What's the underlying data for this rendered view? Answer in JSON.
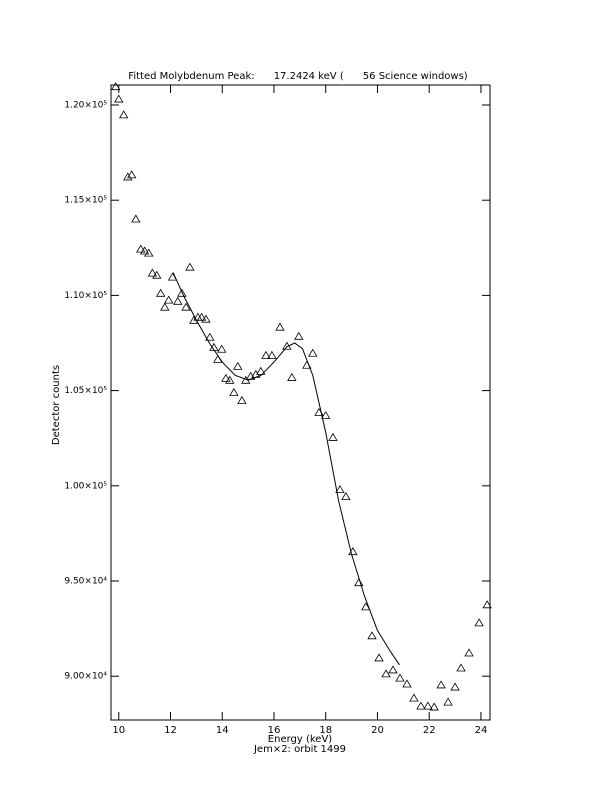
{
  "chart_data": {
    "type": "scatter",
    "title": "Fitted Molybdenum Peak:      17.2424 keV (      56 Science windows)",
    "x_label": "Energy (keV)",
    "subtitle": "Jem×2: orbit 1499",
    "y_label": "Detector counts",
    "color": "#000000",
    "marker": "triangle",
    "xlim": [
      9.7,
      24.35
    ],
    "ylim": [
      87700,
      121050
    ],
    "xticks": [
      10,
      12,
      14,
      16,
      18,
      20,
      22,
      24
    ],
    "yticks": [
      {
        "value": 90000,
        "label": "9.00×10⁴"
      },
      {
        "value": 95000,
        "label": "9.50×10⁴"
      },
      {
        "value": 100000,
        "label": "1.00×10⁵"
      },
      {
        "value": 105000,
        "label": "1.05×10⁵"
      },
      {
        "value": 110000,
        "label": "1.10×10⁵"
      },
      {
        "value": 115000,
        "label": "1.15×10⁵"
      },
      {
        "value": 120000,
        "label": "1.20×10⁵"
      }
    ],
    "x": [
      9.88,
      10.0,
      10.19,
      10.35,
      10.5,
      10.66,
      10.85,
      11.0,
      11.16,
      11.3,
      11.47,
      11.62,
      11.78,
      11.93,
      12.08,
      12.28,
      12.44,
      12.6,
      12.75,
      12.9,
      13.06,
      13.2,
      13.37,
      13.52,
      13.68,
      13.83,
      13.98,
      14.14,
      14.29,
      14.45,
      14.6,
      14.76,
      14.91,
      15.1,
      15.3,
      15.49,
      15.69,
      15.92,
      16.23,
      16.5,
      16.69,
      16.96,
      17.27,
      17.5,
      17.74,
      18.0,
      18.28,
      18.55,
      18.78,
      19.05,
      19.28,
      19.55,
      19.79,
      20.06,
      20.33,
      20.6,
      20.87,
      21.14,
      21.41,
      21.68,
      21.95,
      22.19,
      22.46,
      22.73,
      23.0,
      23.23,
      23.54,
      23.93,
      24.24
    ],
    "values": [
      120950,
      120300,
      119470,
      116210,
      116320,
      114000,
      112420,
      112320,
      112210,
      111160,
      111050,
      110100,
      109370,
      109740,
      110950,
      109680,
      110100,
      109370,
      111470,
      108680,
      108840,
      108840,
      108740,
      107790,
      107260,
      106630,
      107160,
      105630,
      105530,
      104890,
      106260,
      104470,
      105530,
      105740,
      105840,
      106000,
      106840,
      106840,
      108320,
      107320,
      105680,
      107840,
      106320,
      106950,
      103840,
      103680,
      102530,
      99790,
      99420,
      96530,
      94900,
      93630,
      92110,
      90950,
      90110,
      90320,
      89890,
      89580,
      88840,
      88420,
      88420,
      88370,
      89530,
      88630,
      89420,
      90420,
      91210,
      92790,
      93740
    ],
    "fit": {
      "x": [
        12.1,
        12.5,
        13,
        13.5,
        14,
        14.5,
        15,
        15.5,
        16,
        16.5,
        16.8,
        17.1,
        17.5,
        18,
        18.5,
        19,
        19.5,
        20,
        20.5,
        20.85
      ],
      "values": [
        111200,
        110000,
        108700,
        107500,
        106500,
        105800,
        105550,
        105800,
        106500,
        107300,
        107500,
        107200,
        105800,
        102800,
        99200,
        96400,
        94200,
        92400,
        91300,
        90600
      ]
    }
  }
}
